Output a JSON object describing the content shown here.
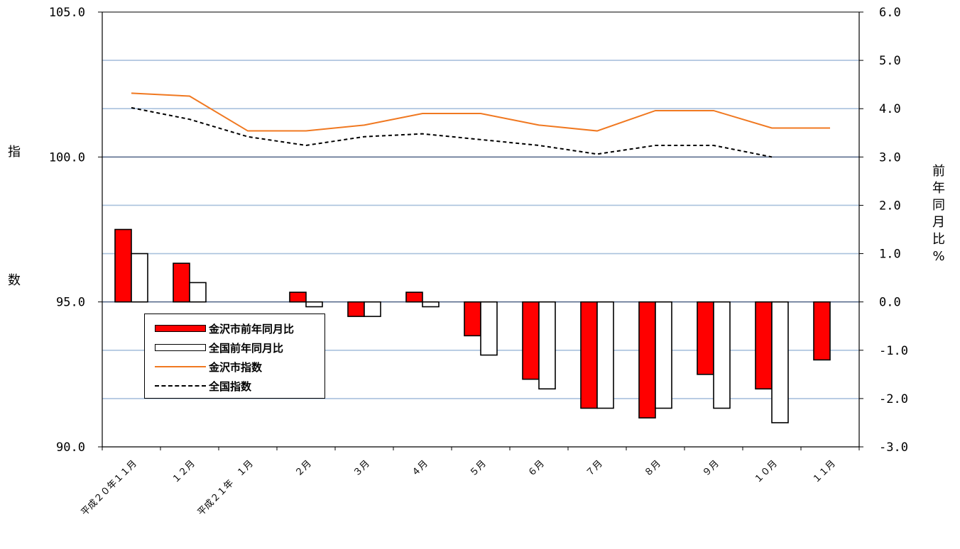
{
  "chart_data": {
    "type": "bar",
    "categories": [
      "平成２０年１１月",
      "１２月",
      "平成２１年　１月",
      "２月",
      "３月",
      "４月",
      "５月",
      "６月",
      "７月",
      "８月",
      "９月",
      "１０月",
      "１１月"
    ],
    "y_left": {
      "label": "指数",
      "range": [
        90.0,
        105.0
      ],
      "ticks": [
        "90.0",
        "95.0",
        "100.0",
        "105.0"
      ]
    },
    "y_right": {
      "label": "前年同月比%",
      "range": [
        -3.0,
        6.0
      ],
      "ticks": [
        "-3.0",
        "-2.0",
        "-1.0",
        "0.0",
        "1.0",
        "2.0",
        "3.0",
        "4.0",
        "5.0",
        "6.0"
      ]
    },
    "series": [
      {
        "name": "金沢市前年同月比",
        "kind": "bar",
        "axis": "right",
        "color": "#ff0000",
        "values": [
          1.5,
          0.8,
          null,
          0.2,
          -0.3,
          0.2,
          -0.7,
          -1.6,
          -2.2,
          -2.4,
          -1.5,
          -1.8,
          -1.2
        ]
      },
      {
        "name": "全国前年同月比",
        "kind": "bar",
        "axis": "right",
        "color": "#ffffff",
        "values": [
          1.0,
          0.4,
          null,
          -0.1,
          -0.3,
          -0.1,
          -1.1,
          -1.8,
          -2.2,
          -2.2,
          -2.2,
          -2.5,
          null
        ]
      },
      {
        "name": "金沢市指数",
        "kind": "line",
        "axis": "left",
        "color": "#f07820",
        "values": [
          102.2,
          102.1,
          100.9,
          100.9,
          101.1,
          101.5,
          101.5,
          101.1,
          100.9,
          101.6,
          101.6,
          101.0,
          101.0
        ]
      },
      {
        "name": "全国指数",
        "kind": "line",
        "axis": "left",
        "color": "#000000",
        "dashed": true,
        "values": [
          101.7,
          101.3,
          100.7,
          100.4,
          100.7,
          100.8,
          100.6,
          100.4,
          100.1,
          100.4,
          100.4,
          100.0,
          null
        ]
      }
    ],
    "grid": true,
    "legend_position": "bottom-left"
  }
}
